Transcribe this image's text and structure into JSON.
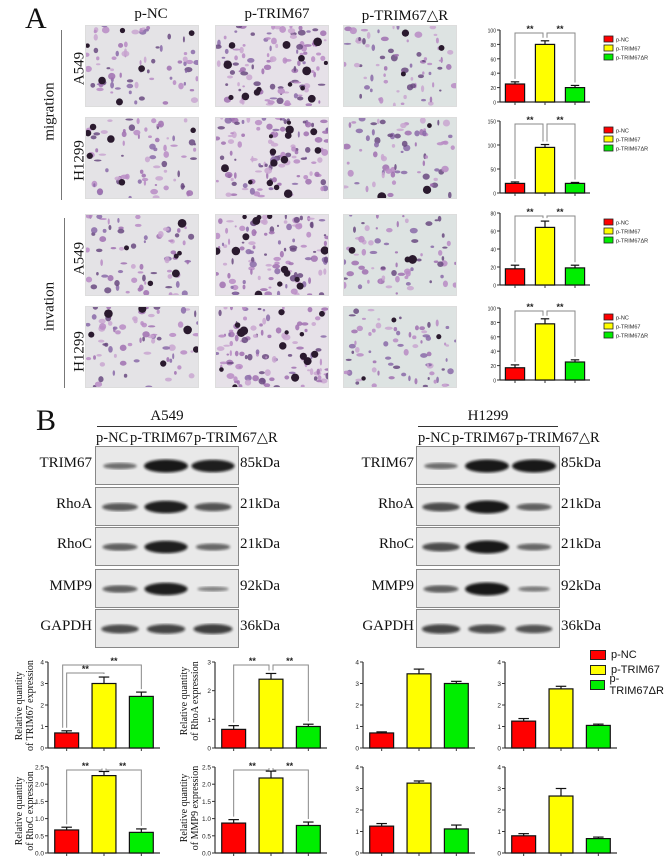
{
  "panel_A": {
    "letter": "A",
    "columns": [
      "p-NC",
      "p-TRIM67",
      "p-TRIM67△R"
    ],
    "groups": [
      {
        "label": "migration",
        "rows": [
          "A549",
          "H1299"
        ]
      },
      {
        "label": "invation",
        "rows": [
          "A549",
          "H1299"
        ]
      }
    ],
    "legend": [
      "p-NC",
      "p-TRIM67",
      "p-TRIM67ΔR"
    ]
  },
  "panel_B": {
    "letter": "B",
    "cell_lines": [
      "A549",
      "H1299"
    ],
    "lanes": [
      "p-NC",
      "p-TRIM67",
      "p-TRIM67△R"
    ],
    "proteins": [
      {
        "name": "TRIM67",
        "kda": "85kDa"
      },
      {
        "name": "RhoA",
        "kda": "21kDa"
      },
      {
        "name": "RhoC",
        "kda": "21kDa"
      },
      {
        "name": "MMP9",
        "kda": "92kDa"
      },
      {
        "name": "GAPDH",
        "kda": "36kDa"
      }
    ],
    "legend": [
      "p-NC",
      "p-TRIM67",
      "p-TRIM67ΔR"
    ],
    "ylabels": {
      "trim67": [
        "Relative quantity",
        "of TRIM67 expression"
      ],
      "rhoa": [
        "Relative quantity",
        "of RhoA expression"
      ],
      "rhoc": [
        "Relative quantity",
        "of RhoC expression"
      ],
      "mmp9": [
        "Relative quantity",
        "of MMP9 expression"
      ]
    }
  },
  "colors": {
    "p-NC": "#ff0000",
    "p-TRIM67": "#ffff00",
    "p-TRIM67dR": "#00ee00"
  },
  "chart_data": [
    {
      "type": "bar",
      "title": "A549 migration",
      "categories": [
        "p-NC",
        "p-TRIM67",
        "p-TRIM67ΔR"
      ],
      "values": [
        25,
        80,
        20
      ],
      "errors": [
        3,
        5,
        3
      ],
      "ylim": [
        0,
        100
      ],
      "yticks": [
        0,
        20,
        40,
        60,
        80,
        100
      ],
      "significance": [
        "**",
        "**"
      ]
    },
    {
      "type": "bar",
      "title": "H1299 migration",
      "categories": [
        "p-NC",
        "p-TRIM67",
        "p-TRIM67ΔR"
      ],
      "values": [
        20,
        95,
        20
      ],
      "errors": [
        3,
        6,
        2
      ],
      "ylim": [
        0,
        150
      ],
      "yticks": [
        0,
        50,
        100,
        150
      ],
      "significance": [
        "**",
        "**"
      ]
    },
    {
      "type": "bar",
      "title": "A549 invation",
      "categories": [
        "p-NC",
        "p-TRIM67",
        "p-TRIM67ΔR"
      ],
      "values": [
        18,
        64,
        19
      ],
      "errors": [
        4,
        7,
        3
      ],
      "ylim": [
        0,
        80
      ],
      "yticks": [
        0,
        20,
        40,
        60,
        80
      ],
      "significance": [
        "**",
        "**"
      ]
    },
    {
      "type": "bar",
      "title": "H1299 invation",
      "categories": [
        "p-NC",
        "p-TRIM67",
        "p-TRIM67ΔR"
      ],
      "values": [
        17,
        78,
        25
      ],
      "errors": [
        4,
        7,
        3
      ],
      "ylim": [
        0,
        100
      ],
      "yticks": [
        0,
        20,
        40,
        60,
        80,
        100
      ],
      "significance": [
        "**",
        "**"
      ]
    },
    {
      "type": "bar",
      "title": "A549 TRIM67",
      "ylabel": "Relative quantity of TRIM67 expression",
      "categories": [
        "p-NC",
        "p-TRIM67",
        "p-TRIM67ΔR"
      ],
      "values": [
        0.7,
        3.0,
        2.4
      ],
      "errors": [
        0.1,
        0.3,
        0.2
      ],
      "ylim": [
        0,
        4
      ],
      "yticks": [
        0,
        1,
        2,
        3,
        4
      ],
      "significance": [
        "**",
        "**"
      ]
    },
    {
      "type": "bar",
      "title": "A549 RhoA",
      "ylabel": "Relative quantity of RhoA expression",
      "categories": [
        "p-NC",
        "p-TRIM67",
        "p-TRIM67ΔR"
      ],
      "values": [
        0.65,
        2.4,
        0.75
      ],
      "errors": [
        0.13,
        0.2,
        0.08
      ],
      "ylim": [
        0,
        3
      ],
      "yticks": [
        0,
        1,
        2,
        3
      ],
      "significance": [
        "**",
        "**"
      ]
    },
    {
      "type": "bar",
      "title": "A549 RhoC",
      "ylabel": "Relative quantity of RhoC expression",
      "categories": [
        "p-NC",
        "p-TRIM67",
        "p-TRIM67ΔR"
      ],
      "values": [
        0.67,
        2.25,
        0.6
      ],
      "errors": [
        0.08,
        0.12,
        0.1
      ],
      "ylim": [
        0,
        2.5
      ],
      "yticks": [
        0.0,
        0.5,
        1.0,
        1.5,
        2.0,
        2.5
      ],
      "significance": [
        "**",
        "**"
      ]
    },
    {
      "type": "bar",
      "title": "A549 MMP9",
      "ylabel": "Relative quantity of MMP9 expression",
      "categories": [
        "p-NC",
        "p-TRIM67",
        "p-TRIM67ΔR"
      ],
      "values": [
        0.87,
        2.18,
        0.8
      ],
      "errors": [
        0.1,
        0.2,
        0.1
      ],
      "ylim": [
        0,
        2.5
      ],
      "yticks": [
        0.0,
        0.5,
        1.0,
        1.5,
        2.0,
        2.5
      ],
      "significance": [
        "**",
        "**"
      ]
    },
    {
      "type": "bar",
      "title": "H1299 TRIM67",
      "categories": [
        "p-NC",
        "p-TRIM67",
        "p-TRIM67ΔR"
      ],
      "values": [
        0.7,
        3.45,
        3.0
      ],
      "errors": [
        0.05,
        0.22,
        0.1
      ],
      "ylim": [
        0,
        4
      ],
      "yticks": [
        0,
        1,
        2,
        3,
        4
      ]
    },
    {
      "type": "bar",
      "title": "H1299 RhoA",
      "categories": [
        "p-NC",
        "p-TRIM67",
        "p-TRIM67ΔR"
      ],
      "values": [
        1.25,
        2.75,
        1.05
      ],
      "errors": [
        0.12,
        0.12,
        0.06
      ],
      "ylim": [
        0,
        4
      ],
      "yticks": [
        0,
        1,
        2,
        3,
        4
      ]
    },
    {
      "type": "bar",
      "title": "H1299 RhoC",
      "categories": [
        "p-NC",
        "p-TRIM67",
        "p-TRIM67ΔR"
      ],
      "values": [
        1.25,
        3.25,
        1.12
      ],
      "errors": [
        0.12,
        0.1,
        0.18
      ],
      "ylim": [
        0,
        4
      ],
      "yticks": [
        0,
        1,
        2,
        3,
        4
      ]
    },
    {
      "type": "bar",
      "title": "H1299 MMP9",
      "categories": [
        "p-NC",
        "p-TRIM67",
        "p-TRIM67ΔR"
      ],
      "values": [
        0.8,
        2.65,
        0.67
      ],
      "errors": [
        0.1,
        0.35,
        0.07
      ],
      "ylim": [
        0,
        4
      ],
      "yticks": [
        0,
        1,
        2,
        3,
        4
      ]
    }
  ]
}
